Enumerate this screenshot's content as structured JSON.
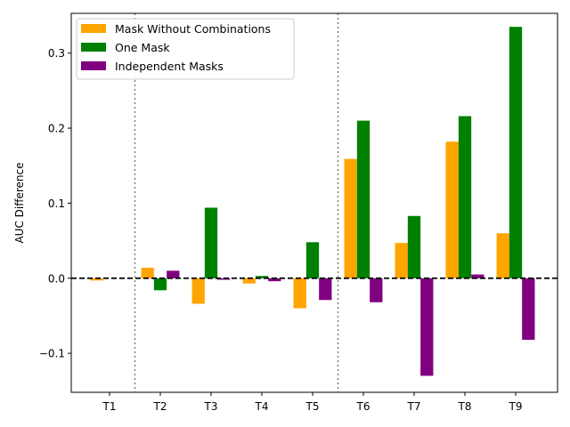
{
  "chart_data": {
    "type": "bar",
    "title": "",
    "xlabel": "",
    "ylabel": "AUC Difference",
    "categories": [
      "T1",
      "T2",
      "T3",
      "T4",
      "T5",
      "T6",
      "T7",
      "T8",
      "T9"
    ],
    "series": [
      {
        "name": "Mask Without Combinations",
        "color": "#ffa500",
        "values": [
          -0.003,
          0.014,
          -0.034,
          -0.007,
          -0.04,
          0.159,
          0.047,
          0.182,
          0.06
        ]
      },
      {
        "name": "One Mask",
        "color": "#008000",
        "values": [
          null,
          -0.016,
          0.094,
          0.003,
          0.048,
          0.21,
          0.083,
          0.216,
          0.335
        ]
      },
      {
        "name": "Independent Masks",
        "color": "#800080",
        "values": [
          null,
          0.01,
          -0.002,
          -0.004,
          -0.029,
          -0.032,
          -0.13,
          0.005,
          -0.082
        ]
      }
    ],
    "ylim": [
      -0.152,
      0.353
    ],
    "yticks": [
      -0.1,
      0.0,
      0.1,
      0.2,
      0.3
    ],
    "ytick_labels": [
      "−0.1",
      "0.0",
      "0.1",
      "0.2",
      "0.3"
    ],
    "reference_line": {
      "y": 0.0,
      "style": "dashed",
      "color": "#000000"
    },
    "separator_lines": [
      {
        "after_category": "T1"
      },
      {
        "after_category": "T5"
      }
    ],
    "grid": false,
    "legend": {
      "position": "top-left"
    }
  }
}
